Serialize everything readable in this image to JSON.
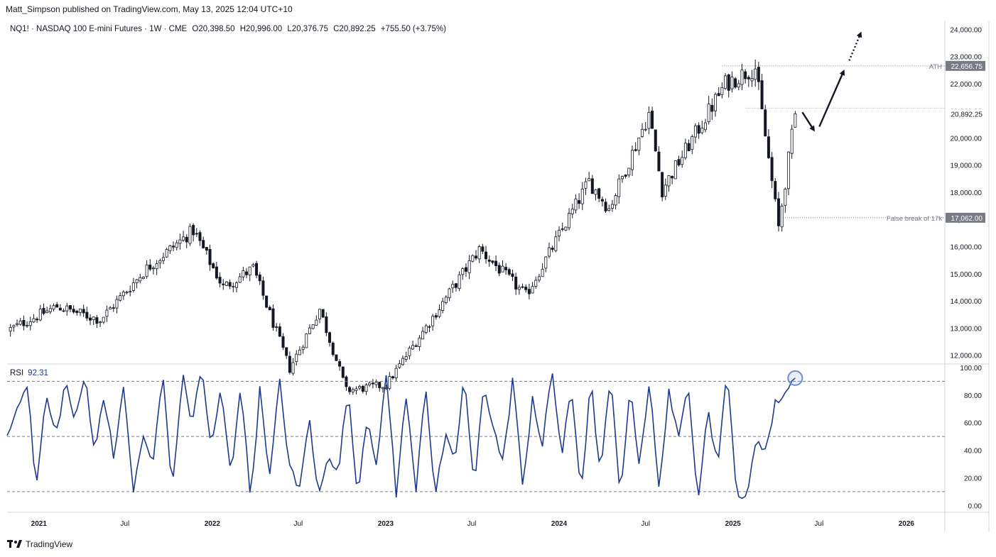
{
  "header": {
    "published_by": "Matt_Simpson published on TradingView.com, May 13, 2025 12:04 UTC+10"
  },
  "symbol_info": {
    "title": "NQ1! · NASDAQ 100 E-mini Futures · 1W · CME",
    "open": "O20,398.50",
    "high": "H20,996.00",
    "low": "L20,376.75",
    "close": "C20,892.25",
    "change": "+755.50 (+3.75%)"
  },
  "rsi_legend": {
    "label": "RSI",
    "value": "92.31"
  },
  "footer": {
    "brand": "TradingView",
    "logo_icon": "tradingview-logo-icon"
  },
  "colors": {
    "candle": "#131722",
    "rsi_line": "#1e3a8a",
    "price_tag_bg": "#787b86",
    "accent_circle": "#6b8fd6"
  },
  "chart_data": [
    {
      "type": "candlestick",
      "title": "NQ1! · NASDAQ 100 E-mini Futures · 1W · CME",
      "x_axis_labels": [
        "2021",
        "Jul",
        "2022",
        "Jul",
        "2023",
        "Jul",
        "2024",
        "Jul",
        "2025",
        "Jul",
        "2026"
      ],
      "y_axis_labels": [
        "24,000.00",
        "23,000.00",
        "22,000.00",
        "21,000.00",
        "20,000.00",
        "19,000.00",
        "18,000.00",
        "17,000.00",
        "16,000.00",
        "15,000.00",
        "14,000.00",
        "13,000.00",
        "12,000.00"
      ],
      "ylim": [
        11700,
        24300
      ],
      "x_range": [
        "2020-10-26",
        "2026-03-23"
      ],
      "trend_anchors": [
        {
          "date": "2020-10-26",
          "price": 12900
        },
        {
          "date": "2021-02-08",
          "price": 13800
        },
        {
          "date": "2021-05-10",
          "price": 13300
        },
        {
          "date": "2021-08-16",
          "price": 15200
        },
        {
          "date": "2021-11-22",
          "price": 16600
        },
        {
          "date": "2022-01-24",
          "price": 14500
        },
        {
          "date": "2022-03-28",
          "price": 15200
        },
        {
          "date": "2022-06-13",
          "price": 11500
        },
        {
          "date": "2022-08-15",
          "price": 13700
        },
        {
          "date": "2022-10-10",
          "price": 10700
        },
        {
          "date": "2023-01-02",
          "price": 10900
        },
        {
          "date": "2023-07-17",
          "price": 15900
        },
        {
          "date": "2023-10-23",
          "price": 14200
        },
        {
          "date": "2024-03-04",
          "price": 18400
        },
        {
          "date": "2024-04-15",
          "price": 17400
        },
        {
          "date": "2024-07-08",
          "price": 20900
        },
        {
          "date": "2024-08-05",
          "price": 18100
        },
        {
          "date": "2024-12-16",
          "price": 22000
        },
        {
          "date": "2025-02-17",
          "price": 22600
        },
        {
          "date": "2025-04-07",
          "price": 16700
        },
        {
          "date": "2025-05-12",
          "price": 20892.25
        }
      ],
      "last_candle": {
        "date": "2025-05-12",
        "open": 20398.5,
        "high": 20996,
        "low": 20376.75,
        "close": 20892.25
      },
      "horizontal_levels": [
        {
          "label": "ATH",
          "value": 22656.75,
          "price_tag": "22,656.75"
        },
        {
          "label": "False break of 17k",
          "value": 17062.0,
          "price_tag": "17,062.00"
        }
      ],
      "current_price_tag": "20,892.25",
      "annotations": [
        "down-arrow",
        "up-arrow",
        "dotted-up-arrow"
      ]
    },
    {
      "type": "line",
      "series": [
        {
          "name": "RSI",
          "last_value": 92.31
        }
      ],
      "y_axis_labels": [
        "100.00",
        "80.00",
        "60.00",
        "40.00",
        "20.00",
        "0.00"
      ],
      "ylim": [
        -5,
        102
      ],
      "levels": [
        90,
        50,
        10
      ],
      "pattern": [
        50,
        70,
        92,
        12,
        80,
        50,
        90,
        60,
        95,
        40,
        80,
        35,
        85,
        10,
        50,
        30,
        96,
        10,
        95,
        60,
        100,
        40,
        85,
        20,
        90,
        5,
        85,
        20,
        90,
        30,
        8,
        65,
        5,
        40,
        20,
        85,
        8,
        65,
        30,
        95,
        8,
        80,
        10,
        90,
        5,
        50,
        30,
        95,
        10,
        90,
        55,
        30,
        95,
        10,
        80,
        40,
        100,
        35,
        85,
        10,
        90,
        20,
        95,
        5,
        85,
        30,
        90,
        10,
        85,
        45,
        90,
        5,
        70,
        30,
        95,
        10,
        2,
        50,
        40,
        75,
        82,
        92.31
      ]
    }
  ]
}
